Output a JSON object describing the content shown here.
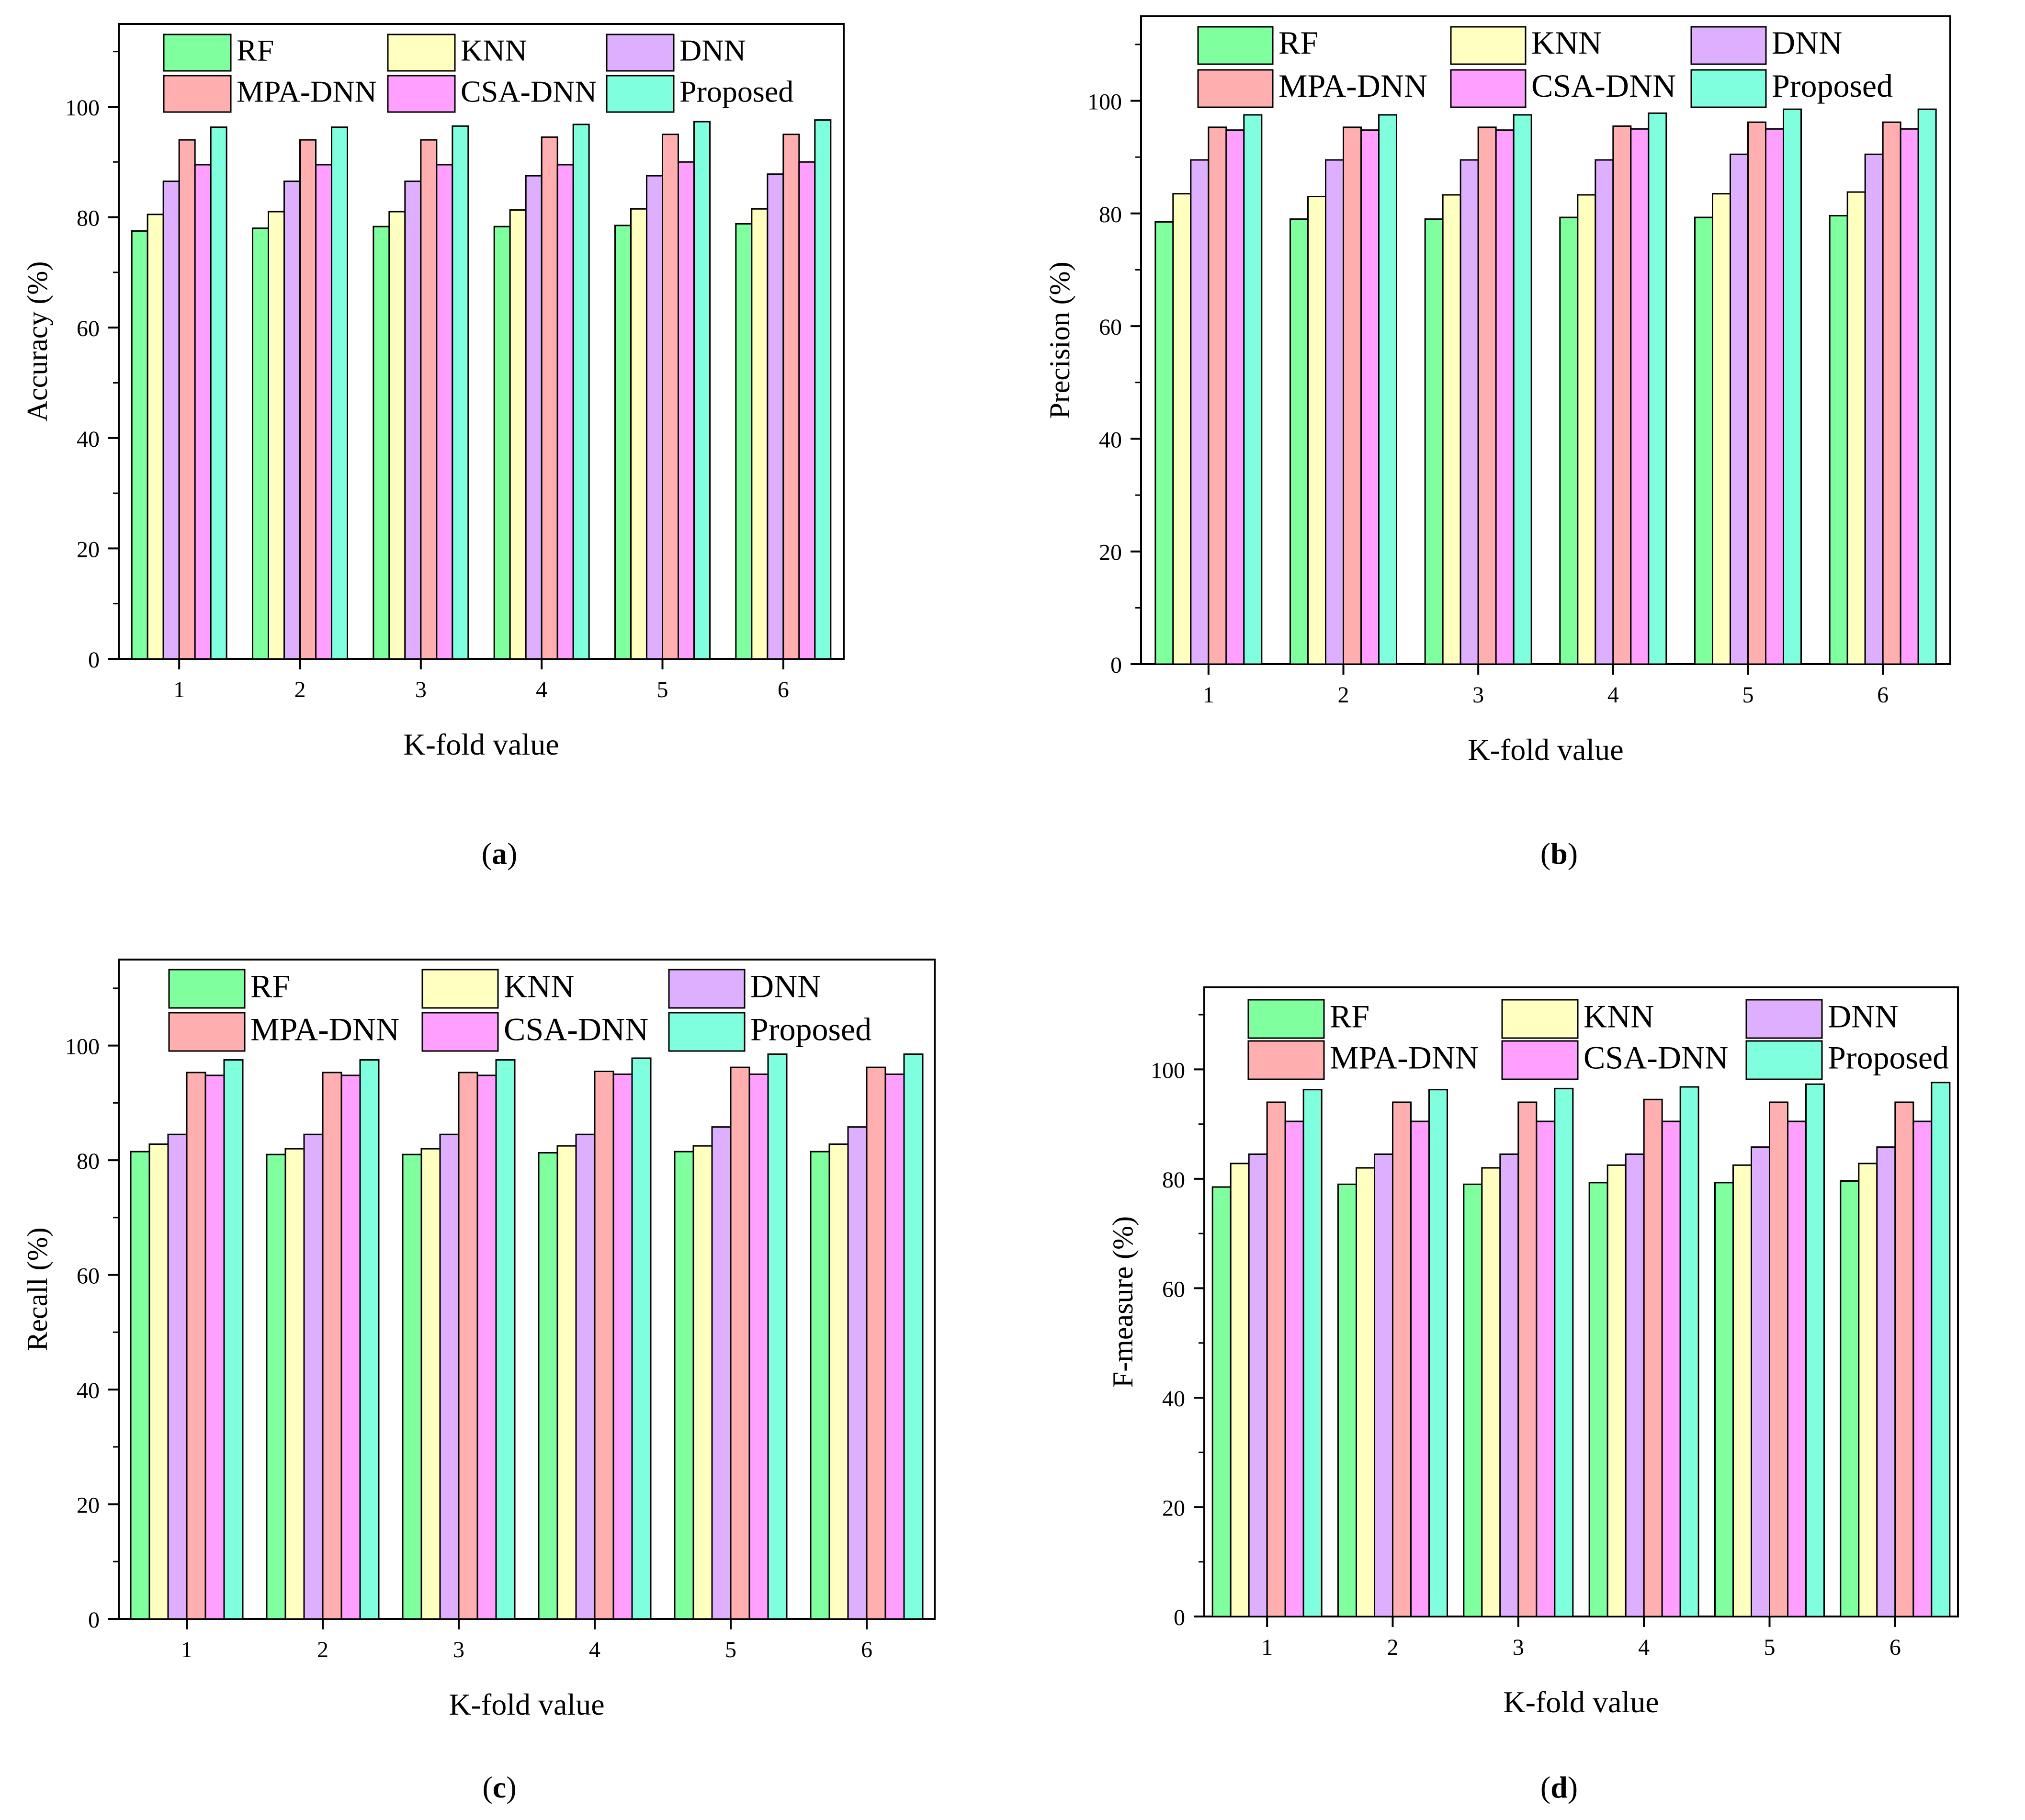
{
  "colors": {
    "RF": "#80ff9f",
    "KNN": "#ffffbf",
    "DNN": "#dfafff",
    "MPA-DNN": "#ffafaf",
    "CSA-DNN": "#ff9fff",
    "Proposed": "#80ffdf"
  },
  "panels": [
    {
      "id": "a",
      "caption": "a",
      "chart_data": {
        "type": "bar",
        "categories": [
          "1",
          "2",
          "3",
          "4",
          "5",
          "6"
        ],
        "xlabel": "K-fold value",
        "ylabel": "Accuracy (%)",
        "ylim": [
          0,
          115
        ],
        "yticks": [
          0,
          20,
          40,
          60,
          80,
          100
        ],
        "legend": "top",
        "series": [
          {
            "name": "RF",
            "values": [
              77.5,
              78,
              78.3,
              78.3,
              78.5,
              78.8
            ]
          },
          {
            "name": "KNN",
            "values": [
              80.5,
              81,
              81,
              81.3,
              81.5,
              81.5
            ]
          },
          {
            "name": "DNN",
            "values": [
              86.5,
              86.5,
              86.5,
              87.5,
              87.5,
              87.8
            ]
          },
          {
            "name": "MPA-DNN",
            "values": [
              94,
              94,
              94,
              94.5,
              95,
              95
            ]
          },
          {
            "name": "CSA-DNN",
            "values": [
              89.5,
              89.5,
              89.5,
              89.5,
              90,
              90
            ]
          },
          {
            "name": "Proposed",
            "values": [
              96.3,
              96.3,
              96.5,
              96.8,
              97.3,
              97.6
            ]
          }
        ]
      }
    },
    {
      "id": "b",
      "caption": "b",
      "chart_data": {
        "type": "bar",
        "categories": [
          "1",
          "2",
          "3",
          "4",
          "5",
          "6"
        ],
        "xlabel": "K-fold value",
        "ylabel": "Precision (%)",
        "ylim": [
          0,
          115
        ],
        "yticks": [
          0,
          20,
          40,
          60,
          80,
          100
        ],
        "legend": "top",
        "series": [
          {
            "name": "RF",
            "values": [
              78.5,
              79,
              79,
              79.3,
              79.3,
              79.6
            ]
          },
          {
            "name": "KNN",
            "values": [
              83.5,
              83,
              83.3,
              83.3,
              83.5,
              83.8
            ]
          },
          {
            "name": "DNN",
            "values": [
              89.5,
              89.5,
              89.5,
              89.5,
              90.5,
              90.5
            ]
          },
          {
            "name": "MPA-DNN",
            "values": [
              95.3,
              95.3,
              95.3,
              95.5,
              96.2,
              96.2
            ]
          },
          {
            "name": "CSA-DNN",
            "values": [
              94.8,
              94.8,
              94.8,
              95,
              95,
              95
            ]
          },
          {
            "name": "Proposed",
            "values": [
              97.5,
              97.5,
              97.5,
              97.8,
              98.5,
              98.5
            ]
          }
        ]
      }
    },
    {
      "id": "c",
      "caption": "c",
      "chart_data": {
        "type": "bar",
        "categories": [
          "1",
          "2",
          "3",
          "4",
          "5",
          "6"
        ],
        "xlabel": "K-fold value",
        "ylabel": "Recall (%)",
        "ylim": [
          0,
          115
        ],
        "yticks": [
          0,
          20,
          40,
          60,
          80,
          100
        ],
        "legend": "top",
        "series": [
          {
            "name": "RF",
            "values": [
              81.5,
              81,
              81,
              81.3,
              81.5,
              81.5
            ]
          },
          {
            "name": "KNN",
            "values": [
              82.8,
              82,
              82,
              82.5,
              82.5,
              82.8
            ]
          },
          {
            "name": "DNN",
            "values": [
              84.5,
              84.5,
              84.5,
              84.5,
              85.8,
              85.8
            ]
          },
          {
            "name": "MPA-DNN",
            "values": [
              95.3,
              95.3,
              95.3,
              95.5,
              96.2,
              96.2
            ]
          },
          {
            "name": "CSA-DNN",
            "values": [
              94.8,
              94.8,
              94.8,
              95,
              95,
              95
            ]
          },
          {
            "name": "Proposed",
            "values": [
              97.5,
              97.5,
              97.5,
              97.8,
              98.5,
              98.5
            ]
          }
        ]
      }
    },
    {
      "id": "d",
      "caption": "d",
      "chart_data": {
        "type": "bar",
        "categories": [
          "1",
          "2",
          "3",
          "4",
          "5",
          "6"
        ],
        "xlabel": "K-fold value",
        "ylabel": "F-measure (%)",
        "ylim": [
          0,
          115
        ],
        "yticks": [
          0,
          20,
          40,
          60,
          80,
          100
        ],
        "legend": "top",
        "series": [
          {
            "name": "RF",
            "values": [
              78.5,
              79,
              79,
              79.3,
              79.3,
              79.6
            ]
          },
          {
            "name": "KNN",
            "values": [
              82.8,
              82,
              82,
              82.5,
              82.5,
              82.8
            ]
          },
          {
            "name": "DNN",
            "values": [
              84.5,
              84.5,
              84.5,
              84.5,
              85.8,
              85.8
            ]
          },
          {
            "name": "MPA-DNN",
            "values": [
              94,
              94,
              94,
              94.5,
              94,
              94
            ]
          },
          {
            "name": "CSA-DNN",
            "values": [
              90.5,
              90.5,
              90.5,
              90.5,
              90.5,
              90.5
            ]
          },
          {
            "name": "Proposed",
            "values": [
              96.3,
              96.3,
              96.5,
              96.8,
              97.3,
              97.6
            ]
          }
        ]
      }
    }
  ]
}
